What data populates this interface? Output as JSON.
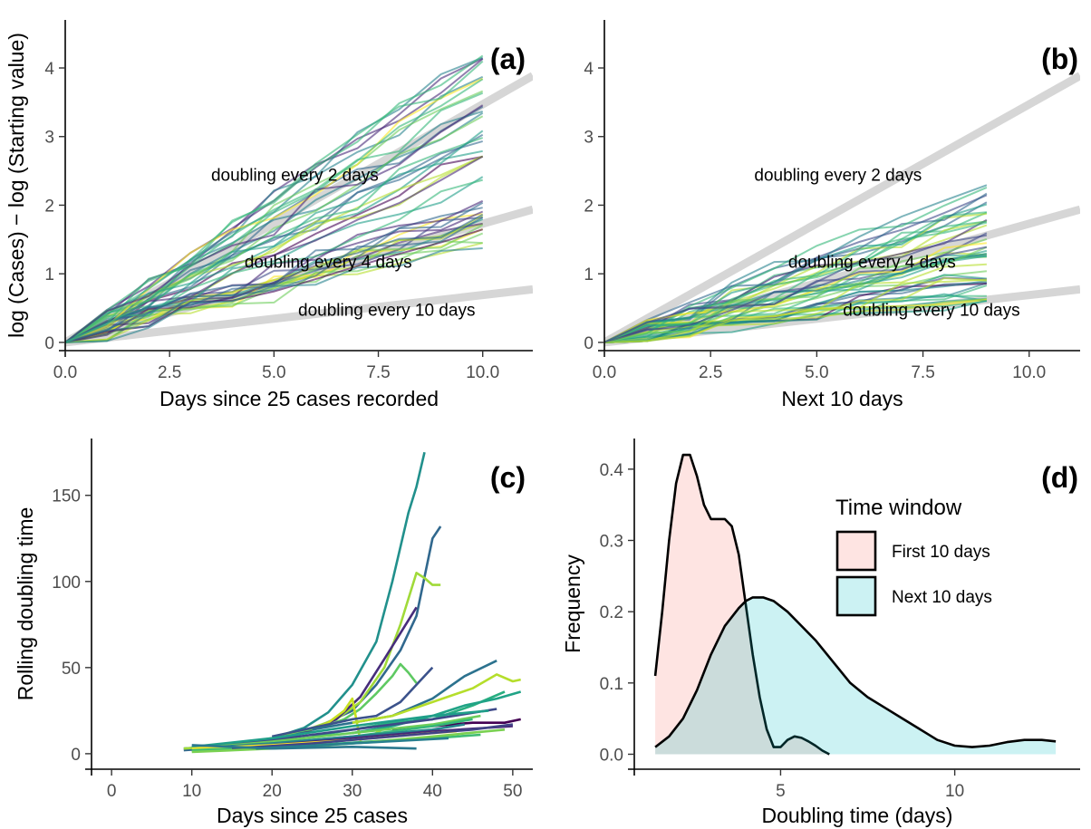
{
  "chart_data": [
    {
      "id": "a",
      "type": "line",
      "panel_label": "(a)",
      "xlabel": "Days since 25 cases recorded",
      "ylabel": "log (Cases) − log (Starting value)",
      "xlim": [
        0,
        11.2
      ],
      "ylim": [
        -0.12,
        4.7
      ],
      "xticks": [
        0,
        2.5,
        5,
        7.5,
        10
      ],
      "xtick_labels": [
        "0.0",
        "2.5",
        "5.0",
        "7.5",
        "10.0"
      ],
      "yticks": [
        0,
        1,
        2,
        3,
        4
      ],
      "ytick_labels": [
        "0",
        "1",
        "2",
        "3",
        "4"
      ],
      "grid": false,
      "reference_lines": [
        {
          "label": "doubling every 2 days",
          "slope": 0.347,
          "label_x": 5.5,
          "label_y": 2.45,
          "show_label": true
        },
        {
          "label": "doubling every 4 days",
          "slope": 0.173,
          "label_x": 6.3,
          "label_y": 1.18,
          "show_label": true
        },
        {
          "label": "doubling every 10 days",
          "slope": 0.069,
          "label_x": 7.7,
          "label_y": 0.48,
          "show_label": true
        }
      ],
      "series_summary": {
        "count": 45,
        "x_start": 0,
        "x_end": 10,
        "final_y_min": 1.3,
        "final_y_max": 4.25,
        "colormap": "viridis"
      },
      "legend": "none"
    },
    {
      "id": "b",
      "type": "line",
      "panel_label": "(b)",
      "xlabel": "Next 10 days",
      "ylabel": "",
      "xlim": [
        0,
        11.2
      ],
      "ylim": [
        -0.12,
        4.7
      ],
      "xticks": [
        0,
        2.5,
        5,
        7.5,
        10
      ],
      "xtick_labels": [
        "0.0",
        "2.5",
        "5.0",
        "7.5",
        "10.0"
      ],
      "yticks": [
        0,
        1,
        2,
        3,
        4
      ],
      "ytick_labels": [
        "0",
        "1",
        "2",
        "3",
        "4"
      ],
      "grid": false,
      "reference_lines": [
        {
          "label": "doubling every 2 days",
          "slope": 0.347,
          "label_x": 5.5,
          "label_y": 2.45,
          "show_label": true
        },
        {
          "label": "doubling every 4 days",
          "slope": 0.173,
          "label_x": 6.3,
          "label_y": 1.18,
          "show_label": true
        },
        {
          "label": "doubling every 10 days",
          "slope": 0.069,
          "label_x": 7.7,
          "label_y": 0.48,
          "show_label": true
        }
      ],
      "series_summary": {
        "count": 45,
        "x_start": 0,
        "x_end": 9,
        "final_y_min": 0.6,
        "final_y_max": 2.4,
        "colormap": "viridis"
      },
      "legend": "none"
    },
    {
      "id": "c",
      "type": "line",
      "panel_label": "(c)",
      "xlabel": "Days since 25 cases",
      "ylabel": "Rolling doubling time",
      "xlim": [
        -2.5,
        52.5
      ],
      "ylim": [
        -9,
        183
      ],
      "xticks": [
        0,
        10,
        20,
        30,
        40,
        50
      ],
      "xtick_labels": [
        "0",
        "10",
        "20",
        "30",
        "40",
        "50"
      ],
      "yticks": [
        0,
        50,
        100,
        150
      ],
      "ytick_labels": [
        "0",
        "50",
        "100",
        "150"
      ],
      "grid": false,
      "series": [
        {
          "color": "#21908c",
          "x": [
            9,
            15,
            20,
            24,
            27,
            30,
            33,
            35,
            37,
            38,
            39
          ],
          "y": [
            3,
            5,
            9,
            15,
            24,
            40,
            65,
            100,
            140,
            155,
            175
          ]
        },
        {
          "color": "#31688e",
          "x": [
            9,
            15,
            20,
            25,
            30,
            33,
            36,
            38,
            40,
            41
          ],
          "y": [
            2,
            4,
            8,
            14,
            25,
            40,
            60,
            80,
            125,
            132
          ]
        },
        {
          "color": "#a0da39",
          "x": [
            9,
            15,
            20,
            25,
            28,
            31,
            34,
            36,
            38,
            39,
            40,
            41
          ],
          "y": [
            3,
            5,
            9,
            15,
            20,
            30,
            50,
            75,
            105,
            102,
            98,
            98
          ]
        },
        {
          "color": "#472d7b",
          "x": [
            12,
            18,
            24,
            28,
            31,
            34,
            36,
            38
          ],
          "y": [
            3,
            6,
            12,
            20,
            33,
            55,
            70,
            85
          ]
        },
        {
          "color": "#5ec962",
          "x": [
            22,
            26,
            29,
            31,
            33,
            35,
            36,
            37,
            38
          ],
          "y": [
            12,
            15,
            20,
            26,
            35,
            45,
            52,
            47,
            41
          ]
        },
        {
          "color": "#c8e020",
          "x": [
            25,
            27,
            29,
            30,
            30.5,
            31,
            33,
            35
          ],
          "y": [
            14,
            18,
            25,
            32,
            20,
            8,
            12,
            18
          ]
        },
        {
          "color": "#3b528b",
          "x": [
            20,
            25,
            30,
            33,
            36,
            38,
            40
          ],
          "y": [
            10,
            15,
            20,
            22,
            30,
            40,
            50
          ]
        },
        {
          "color": "#2c728e",
          "x": [
            25,
            30,
            35,
            40,
            44,
            48
          ],
          "y": [
            14,
            18,
            22,
            32,
            45,
            54
          ]
        },
        {
          "color": "#b5de2b",
          "x": [
            30,
            35,
            40,
            45,
            48,
            50,
            51
          ],
          "y": [
            18,
            22,
            30,
            38,
            46,
            42,
            43
          ]
        },
        {
          "color": "#28ae80",
          "x": [
            25,
            30,
            35,
            40,
            45,
            49
          ],
          "y": [
            10,
            14,
            18,
            20,
            28,
            36
          ]
        },
        {
          "color": "#20a386",
          "x": [
            30,
            35,
            40,
            44,
            48,
            51
          ],
          "y": [
            12,
            16,
            22,
            28,
            32,
            36
          ]
        },
        {
          "color": "#440154",
          "x": [
            35,
            40,
            45,
            49,
            51
          ],
          "y": [
            14,
            16,
            18,
            18,
            20
          ]
        },
        {
          "color": "#3e4989",
          "x": [
            10,
            20,
            30,
            40,
            48
          ],
          "y": [
            3,
            8,
            14,
            20,
            26
          ]
        },
        {
          "color": "#1f9e89",
          "x": [
            10,
            20,
            30,
            40,
            47
          ],
          "y": [
            4,
            9,
            16,
            22,
            25
          ]
        },
        {
          "color": "#6ccd5a",
          "x": [
            10,
            20,
            30,
            40,
            46
          ],
          "y": [
            3,
            7,
            12,
            17,
            22
          ]
        },
        {
          "color": "#35b779",
          "x": [
            10,
            20,
            30,
            40,
            45
          ],
          "y": [
            2,
            6,
            10,
            16,
            20
          ]
        },
        {
          "color": "#26828e",
          "x": [
            10,
            20,
            30,
            40,
            44
          ],
          "y": [
            3,
            6,
            10,
            14,
            17
          ]
        },
        {
          "color": "#482878",
          "x": [
            10,
            20,
            30,
            40,
            50
          ],
          "y": [
            2,
            5,
            9,
            13,
            16
          ]
        },
        {
          "color": "#fde725",
          "x": [
            10,
            20,
            30,
            40,
            43
          ],
          "y": [
            3,
            5,
            8,
            12,
            13
          ]
        },
        {
          "color": "#1fa187",
          "x": [
            12,
            22,
            32,
            42
          ],
          "y": [
            2,
            4,
            7,
            10
          ]
        },
        {
          "color": "#3fbc73",
          "x": [
            10,
            20,
            30,
            40,
            46
          ],
          "y": [
            2,
            4,
            6,
            9,
            11
          ]
        },
        {
          "color": "#414487",
          "x": [
            15,
            25,
            35,
            45,
            50
          ],
          "y": [
            3,
            6,
            10,
            14,
            17
          ]
        },
        {
          "color": "#7ad151",
          "x": [
            10,
            20,
            30,
            40,
            49
          ],
          "y": [
            1,
            3,
            6,
            10,
            14
          ]
        },
        {
          "color": "#277f8e",
          "x": [
            18,
            26,
            34,
            42
          ],
          "y": [
            3,
            5,
            7,
            9
          ]
        },
        {
          "color": "#2a788e",
          "x": [
            10,
            20,
            30,
            38
          ],
          "y": [
            5,
            3,
            4,
            3
          ]
        }
      ],
      "legend": "none"
    },
    {
      "id": "d",
      "type": "area",
      "panel_label": "(d)",
      "xlabel": "Doubling time (days)",
      "ylabel": "Frequency",
      "xlim": [
        0.8,
        13.6
      ],
      "ylim": [
        -0.021,
        0.443
      ],
      "xticks": [
        5,
        10
      ],
      "xtick_labels": [
        "5",
        "10"
      ],
      "yticks": [
        0,
        0.1,
        0.2,
        0.3,
        0.4
      ],
      "ytick_labels": [
        "0.0",
        "0.1",
        "0.2",
        "0.3",
        "0.4"
      ],
      "grid": false,
      "legend_title": "Time window",
      "legend_position": "top-right",
      "series": [
        {
          "name": "First 10 days",
          "fill": "#f8766d",
          "x": [
            1.4,
            1.6,
            1.8,
            2.0,
            2.2,
            2.4,
            2.6,
            2.8,
            3.0,
            3.2,
            3.4,
            3.6,
            3.8,
            4.0,
            4.2,
            4.4,
            4.6,
            4.8,
            5.0,
            5.2,
            5.4,
            5.6,
            5.8,
            6.0,
            6.2,
            6.4
          ],
          "y": [
            0.11,
            0.2,
            0.3,
            0.38,
            0.42,
            0.42,
            0.39,
            0.35,
            0.33,
            0.33,
            0.33,
            0.32,
            0.28,
            0.21,
            0.14,
            0.08,
            0.035,
            0.01,
            0.01,
            0.02,
            0.025,
            0.023,
            0.018,
            0.012,
            0.005,
            0.0
          ]
        },
        {
          "name": "Next 10 days",
          "fill": "#00bfc4",
          "x": [
            1.4,
            1.8,
            2.2,
            2.6,
            3.0,
            3.4,
            3.8,
            4.0,
            4.2,
            4.5,
            4.8,
            5.2,
            5.6,
            6.0,
            6.5,
            7.0,
            7.5,
            8.0,
            8.5,
            9.0,
            9.5,
            10.0,
            10.5,
            11.0,
            11.5,
            12.0,
            12.5,
            12.9
          ],
          "y": [
            0.01,
            0.025,
            0.05,
            0.09,
            0.14,
            0.18,
            0.205,
            0.215,
            0.22,
            0.22,
            0.215,
            0.2,
            0.18,
            0.16,
            0.13,
            0.1,
            0.08,
            0.065,
            0.05,
            0.035,
            0.02,
            0.012,
            0.01,
            0.012,
            0.017,
            0.02,
            0.02,
            0.018
          ]
        }
      ]
    }
  ]
}
